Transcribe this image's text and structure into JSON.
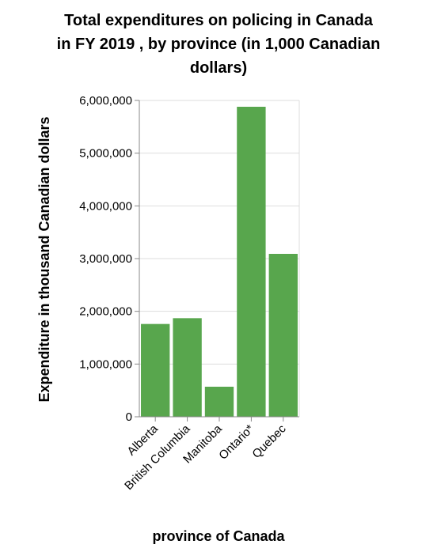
{
  "chart_data": {
    "type": "bar",
    "title": [
      "Total expenditures on policing in Canada",
      "in FY 2019 , by province (in 1,000 Canadian",
      "dollars)"
    ],
    "xlabel": "province of Canada",
    "ylabel": "Expenditure in thousand Canadian dollars",
    "categories": [
      "Alberta",
      "British Columbia",
      "Manitoba",
      "Ontario*",
      "Quebec"
    ],
    "values": [
      1760000,
      1870000,
      570000,
      5880000,
      3090000
    ],
    "ylim": [
      0,
      6000000
    ],
    "yticks": [
      0,
      1000000,
      2000000,
      3000000,
      4000000,
      5000000,
      6000000
    ],
    "ytick_labels": [
      "0",
      "1,000,000",
      "2,000,000",
      "3,000,000",
      "4,000,000",
      "5,000,000",
      "6,000,000"
    ],
    "grid": true,
    "colors": {
      "bar": "#58a64d"
    }
  }
}
